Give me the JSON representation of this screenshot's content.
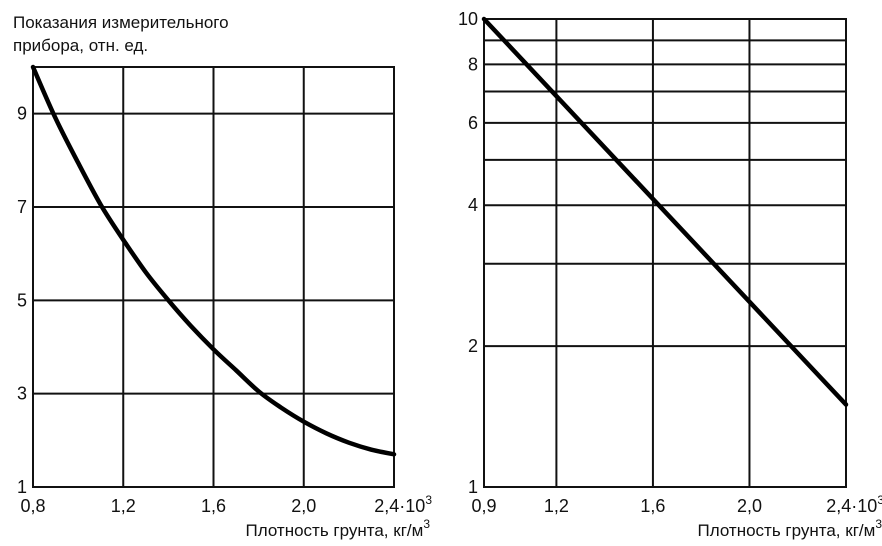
{
  "chart_data": [
    {
      "type": "line",
      "title": "",
      "ylabel_line1": "Показания измерительного",
      "ylabel_line2": "прибора, отн. ед.",
      "xlabel": "Плотность грунта, кг/м",
      "xlabel_sup": "3",
      "xlim": [
        0.8,
        2.4
      ],
      "ylim": [
        1,
        10
      ],
      "yscale": "linear",
      "grid": true,
      "x_ticks": [
        {
          "value": 0.8,
          "label": "0,8"
        },
        {
          "value": 1.2,
          "label": "1,2"
        },
        {
          "value": 1.6,
          "label": "1,6"
        },
        {
          "value": 2.0,
          "label": "2,0"
        },
        {
          "value": 2.4,
          "label": "2,4·10",
          "sup": "3"
        }
      ],
      "y_ticks": [
        {
          "value": 1,
          "label": "1"
        },
        {
          "value": 3,
          "label": "3"
        },
        {
          "value": 5,
          "label": "5"
        },
        {
          "value": 7,
          "label": "7"
        },
        {
          "value": 9,
          "label": "9"
        }
      ],
      "y_gridlines": [
        1,
        3,
        5,
        7,
        9,
        10
      ],
      "series": [
        {
          "x": [
            0.8,
            0.9,
            1.0,
            1.1,
            1.2,
            1.3,
            1.4,
            1.5,
            1.6,
            1.7,
            1.8,
            1.9,
            2.0,
            2.1,
            2.2,
            2.3,
            2.4
          ],
          "y": [
            10.0,
            8.9,
            7.95,
            7.05,
            6.3,
            5.6,
            5.0,
            4.45,
            3.95,
            3.5,
            3.05,
            2.7,
            2.4,
            2.15,
            1.95,
            1.8,
            1.7
          ]
        }
      ]
    },
    {
      "type": "line",
      "title": "",
      "xlabel": "Плотность грунта, кг/м",
      "xlabel_sup": "3",
      "xlim": [
        0.9,
        2.4
      ],
      "ylim": [
        1,
        10
      ],
      "yscale": "log",
      "grid": true,
      "x_ticks": [
        {
          "value": 0.9,
          "label": "0,9"
        },
        {
          "value": 1.2,
          "label": "1,2"
        },
        {
          "value": 1.6,
          "label": "1,6"
        },
        {
          "value": 2.0,
          "label": "2,0"
        },
        {
          "value": 2.4,
          "label": "2,4·10",
          "sup": "3"
        }
      ],
      "y_ticks": [
        {
          "value": 1,
          "label": "1"
        },
        {
          "value": 2,
          "label": "2"
        },
        {
          "value": 4,
          "label": "4"
        },
        {
          "value": 6,
          "label": "6"
        },
        {
          "value": 8,
          "label": "8"
        },
        {
          "value": 10,
          "label": "10"
        }
      ],
      "y_gridlines": [
        2,
        3,
        4,
        5,
        6,
        7,
        8,
        9,
        10
      ],
      "series": [
        {
          "x": [
            0.9,
            2.4
          ],
          "y": [
            10.0,
            1.5
          ]
        }
      ]
    }
  ]
}
